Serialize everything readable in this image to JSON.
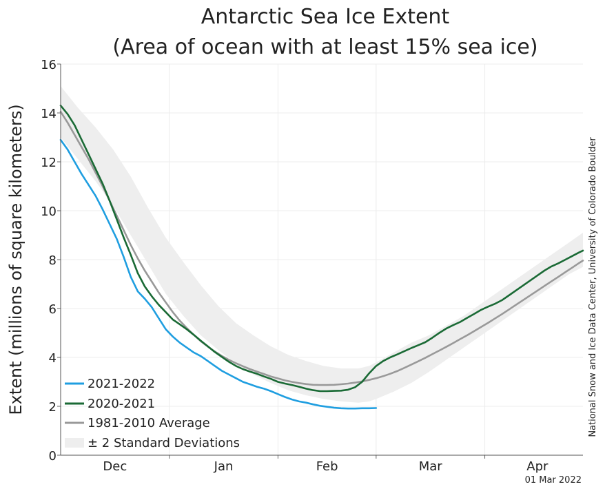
{
  "chart_data": {
    "type": "line",
    "title": "Antarctic Sea Ice Extent",
    "subtitle": "(Area of ocean with at least 15% sea ice)",
    "ylabel": "Extent (millions of square kilometers)",
    "xlabel": "",
    "ylim": [
      0,
      16
    ],
    "yticks": [
      "0",
      "2",
      "4",
      "6",
      "8",
      "10",
      "12",
      "14",
      "16"
    ],
    "months": [
      {
        "label": "Dec",
        "start": 0,
        "end": 31
      },
      {
        "label": "Jan",
        "start": 31,
        "end": 62
      },
      {
        "label": "Feb",
        "start": 62,
        "end": 90
      },
      {
        "label": "Mar",
        "start": 90,
        "end": 121
      },
      {
        "label": "Apr",
        "start": 121,
        "end": 151
      }
    ],
    "xlim": [
      0,
      149
    ],
    "grid": true,
    "legend_position": "bottom-left",
    "credit": "National Snow and Ice Data Center, University of Colorado Boulder",
    "date_stamp": "01 Mar 2022",
    "band": {
      "name": "± 2 Standard Deviations",
      "color": "#eeeeee",
      "x": [
        0,
        5,
        10,
        15,
        20,
        25,
        30,
        35,
        40,
        45,
        50,
        55,
        60,
        65,
        70,
        75,
        80,
        85,
        88,
        90,
        95,
        100,
        105,
        110,
        115,
        120,
        125,
        130,
        135,
        140,
        145,
        149
      ],
      "upper": [
        15.1,
        14.2,
        13.4,
        12.5,
        11.4,
        10.1,
        8.9,
        7.9,
        6.95,
        6.1,
        5.4,
        4.9,
        4.45,
        4.1,
        3.85,
        3.65,
        3.55,
        3.55,
        3.65,
        3.8,
        4.2,
        4.6,
        4.9,
        5.3,
        5.7,
        6.2,
        6.7,
        7.2,
        7.7,
        8.2,
        8.7,
        9.1
      ],
      "lower": [
        13.0,
        12.1,
        11.2,
        10.2,
        9.0,
        7.8,
        6.6,
        5.7,
        4.9,
        4.3,
        3.75,
        3.3,
        2.95,
        2.65,
        2.45,
        2.3,
        2.2,
        2.15,
        2.2,
        2.3,
        2.6,
        2.95,
        3.4,
        3.9,
        4.4,
        4.9,
        5.4,
        5.9,
        6.4,
        6.9,
        7.4,
        7.7
      ]
    },
    "series": [
      {
        "name": "2021-2022",
        "color": "#1f9ee0",
        "x": [
          0,
          2,
          4,
          6,
          8,
          10,
          12,
          14,
          16,
          18,
          20,
          22,
          24,
          26,
          28,
          30,
          32,
          34,
          36,
          38,
          40,
          42,
          44,
          46,
          48,
          50,
          52,
          54,
          56,
          58,
          60,
          62,
          64,
          66,
          68,
          70,
          72,
          74,
          76,
          78,
          80,
          82,
          84,
          86,
          88,
          90
        ],
        "y": [
          12.9,
          12.5,
          12.0,
          11.5,
          11.05,
          10.6,
          10.05,
          9.45,
          8.85,
          8.1,
          7.3,
          6.7,
          6.4,
          6.05,
          5.6,
          5.15,
          4.85,
          4.6,
          4.4,
          4.2,
          4.05,
          3.85,
          3.65,
          3.45,
          3.3,
          3.15,
          3.0,
          2.9,
          2.8,
          2.72,
          2.62,
          2.5,
          2.38,
          2.28,
          2.2,
          2.15,
          2.08,
          2.02,
          1.98,
          1.94,
          1.92,
          1.91,
          1.91,
          1.92,
          1.92,
          1.93
        ]
      },
      {
        "name": "2020-2021",
        "color": "#1a6a35",
        "x": [
          0,
          2,
          4,
          6,
          8,
          10,
          12,
          14,
          16,
          18,
          20,
          22,
          24,
          26,
          28,
          30,
          32,
          34,
          36,
          38,
          40,
          42,
          44,
          46,
          48,
          50,
          52,
          54,
          56,
          58,
          60,
          62,
          64,
          66,
          68,
          70,
          72,
          74,
          76,
          78,
          80,
          82,
          84,
          86,
          88,
          90,
          92,
          94,
          96,
          98,
          100,
          102,
          104,
          106,
          108,
          110,
          112,
          114,
          116,
          118,
          120,
          122,
          124,
          126,
          128,
          130,
          132,
          134,
          136,
          138,
          140,
          142,
          144,
          146,
          148,
          149
        ],
        "y": [
          14.3,
          13.95,
          13.5,
          12.9,
          12.3,
          11.7,
          11.1,
          10.4,
          9.65,
          8.9,
          8.2,
          7.45,
          6.9,
          6.5,
          6.15,
          5.85,
          5.55,
          5.35,
          5.15,
          4.92,
          4.68,
          4.45,
          4.22,
          4.02,
          3.82,
          3.65,
          3.52,
          3.42,
          3.33,
          3.22,
          3.12,
          3.0,
          2.93,
          2.87,
          2.8,
          2.72,
          2.66,
          2.62,
          2.62,
          2.63,
          2.64,
          2.68,
          2.78,
          3.0,
          3.35,
          3.65,
          3.85,
          4.0,
          4.12,
          4.25,
          4.38,
          4.5,
          4.62,
          4.8,
          5.0,
          5.18,
          5.32,
          5.45,
          5.62,
          5.78,
          5.95,
          6.08,
          6.2,
          6.35,
          6.55,
          6.75,
          6.95,
          7.15,
          7.35,
          7.55,
          7.72,
          7.85,
          8.0,
          8.15,
          8.3,
          8.37
        ]
      },
      {
        "name": "1981-2010 Average",
        "color": "#999999",
        "x": [
          0,
          2,
          4,
          6,
          8,
          10,
          12,
          14,
          16,
          18,
          20,
          22,
          24,
          26,
          28,
          30,
          32,
          34,
          36,
          38,
          40,
          42,
          44,
          46,
          48,
          50,
          52,
          54,
          56,
          58,
          60,
          62,
          64,
          66,
          68,
          70,
          72,
          74,
          76,
          78,
          80,
          82,
          84,
          86,
          88,
          90,
          92,
          94,
          96,
          98,
          100,
          102,
          104,
          106,
          108,
          110,
          112,
          114,
          116,
          118,
          120,
          122,
          124,
          126,
          128,
          130,
          132,
          134,
          136,
          138,
          140,
          142,
          144,
          146,
          148,
          149
        ],
        "y": [
          14.05,
          13.6,
          13.1,
          12.6,
          12.1,
          11.55,
          11.0,
          10.4,
          9.8,
          9.2,
          8.6,
          8.05,
          7.55,
          7.1,
          6.65,
          6.25,
          5.85,
          5.5,
          5.2,
          4.92,
          4.66,
          4.44,
          4.24,
          4.06,
          3.9,
          3.76,
          3.64,
          3.52,
          3.42,
          3.32,
          3.22,
          3.14,
          3.06,
          3.0,
          2.95,
          2.91,
          2.88,
          2.87,
          2.87,
          2.88,
          2.9,
          2.93,
          2.97,
          3.02,
          3.08,
          3.15,
          3.23,
          3.33,
          3.44,
          3.57,
          3.7,
          3.84,
          3.98,
          4.13,
          4.28,
          4.43,
          4.59,
          4.75,
          4.91,
          5.08,
          5.25,
          5.42,
          5.6,
          5.78,
          5.97,
          6.16,
          6.35,
          6.54,
          6.73,
          6.92,
          7.11,
          7.3,
          7.49,
          7.68,
          7.87,
          7.96
        ]
      }
    ]
  }
}
